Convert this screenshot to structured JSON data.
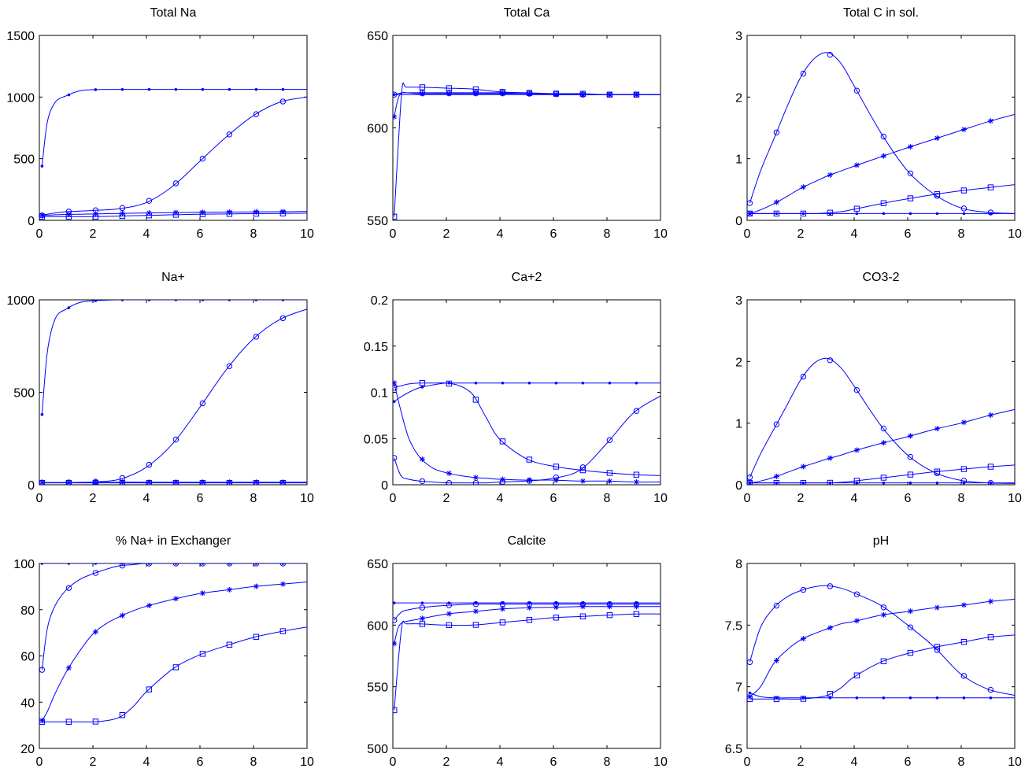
{
  "figure": {
    "marker_color": "#0000ff",
    "axes_color": "#000000"
  },
  "chart_data": [
    {
      "type": "line",
      "title": "Total Na",
      "xlabel": "",
      "ylabel": "",
      "xlim": [
        0,
        10
      ],
      "ylim": [
        0,
        1500
      ],
      "xticks": [
        0,
        2,
        4,
        6,
        8,
        10
      ],
      "yticks": [
        0,
        500,
        1000,
        1500
      ],
      "x": [
        0.1,
        0.3,
        0.6,
        1.0,
        1.5,
        2.0,
        3.0,
        4.0,
        5.0,
        6.0,
        7.0,
        8.0,
        9.0,
        10.0
      ],
      "series": [
        {
          "marker": "dot",
          "values": [
            440,
            800,
            960,
            1010,
            1050,
            1060,
            1062,
            1062,
            1062,
            1062,
            1062,
            1062,
            1062,
            1062
          ]
        },
        {
          "marker": "circle",
          "values": [
            40,
            50,
            60,
            70,
            75,
            80,
            95,
            145,
            280,
            480,
            680,
            850,
            960,
            1000
          ]
        },
        {
          "marker": "asterisk",
          "values": [
            40,
            42,
            45,
            48,
            50,
            52,
            56,
            60,
            63,
            65,
            67,
            69,
            70,
            72
          ]
        },
        {
          "marker": "square",
          "values": [
            30,
            30,
            30,
            30,
            30,
            30,
            35,
            40,
            45,
            50,
            52,
            54,
            56,
            58
          ]
        }
      ]
    },
    {
      "type": "line",
      "title": "Total Ca",
      "xlabel": "",
      "ylabel": "",
      "xlim": [
        0,
        10
      ],
      "ylim": [
        550,
        650
      ],
      "xticks": [
        0,
        2,
        4,
        6,
        8,
        10
      ],
      "yticks": [
        550,
        600,
        650
      ],
      "x": [
        0.05,
        0.2,
        0.35,
        0.5,
        1.0,
        2.0,
        3.0,
        4.0,
        5.0,
        6.0,
        7.0,
        8.0,
        9.0,
        10.0
      ],
      "series": [
        {
          "marker": "dot",
          "values": [
            618,
            618,
            618,
            618,
            618,
            618,
            618,
            618,
            618,
            618,
            618,
            618,
            618,
            618
          ]
        },
        {
          "marker": "circle",
          "values": [
            618,
            618.5,
            619,
            619,
            619,
            619,
            619,
            619,
            618.5,
            618.5,
            618,
            618,
            618,
            618
          ]
        },
        {
          "marker": "asterisk",
          "values": [
            606,
            616,
            619,
            619,
            618.5,
            618.5,
            618.5,
            618.5,
            618.5,
            618,
            618,
            618,
            618,
            618
          ]
        },
        {
          "marker": "square",
          "values": [
            552,
            590,
            622,
            622,
            622,
            621.5,
            621,
            619.5,
            619,
            618.5,
            618.5,
            618,
            618,
            618
          ]
        }
      ]
    },
    {
      "type": "line",
      "title": "Total C in sol.",
      "xlabel": "",
      "ylabel": "",
      "xlim": [
        0,
        10
      ],
      "ylim": [
        0,
        3
      ],
      "xticks": [
        0,
        2,
        4,
        6,
        8,
        10
      ],
      "yticks": [
        0,
        1,
        2,
        3
      ],
      "x": [
        0.1,
        0.5,
        1.0,
        1.5,
        2.0,
        2.5,
        3.0,
        3.5,
        4.0,
        5.0,
        6.0,
        7.0,
        8.0,
        9.0,
        10.0
      ],
      "series": [
        {
          "marker": "dot",
          "values": [
            0.11,
            0.11,
            0.11,
            0.11,
            0.11,
            0.11,
            0.11,
            0.11,
            0.11,
            0.11,
            0.11,
            0.11,
            0.11,
            0.11,
            0.11
          ]
        },
        {
          "marker": "circle",
          "values": [
            0.28,
            0.8,
            1.32,
            1.85,
            2.32,
            2.62,
            2.72,
            2.55,
            2.18,
            1.42,
            0.8,
            0.42,
            0.2,
            0.13,
            0.11
          ]
        },
        {
          "marker": "asterisk",
          "values": [
            0.11,
            0.17,
            0.27,
            0.39,
            0.52,
            0.62,
            0.72,
            0.8,
            0.88,
            1.03,
            1.18,
            1.32,
            1.46,
            1.6,
            1.72
          ]
        },
        {
          "marker": "square",
          "values": [
            0.11,
            0.11,
            0.11,
            0.11,
            0.11,
            0.11,
            0.12,
            0.14,
            0.18,
            0.27,
            0.35,
            0.42,
            0.48,
            0.53,
            0.58
          ]
        }
      ]
    },
    {
      "type": "line",
      "title": "Na+",
      "xlabel": "",
      "ylabel": "",
      "xlim": [
        0,
        10
      ],
      "ylim": [
        0,
        1000
      ],
      "xticks": [
        0,
        2,
        4,
        6,
        8,
        10
      ],
      "yticks": [
        0,
        500,
        1000
      ],
      "x": [
        0.1,
        0.3,
        0.6,
        1.0,
        1.5,
        2.0,
        3.0,
        4.0,
        5.0,
        6.0,
        7.0,
        8.0,
        9.0,
        10.0
      ],
      "series": [
        {
          "marker": "dot",
          "values": [
            380,
            720,
            900,
            950,
            985,
            995,
            1000,
            1000,
            1000,
            1000,
            1000,
            1000,
            1000,
            1000
          ]
        },
        {
          "marker": "circle",
          "values": [
            12,
            12,
            12,
            12,
            13,
            15,
            30,
            95,
            225,
            420,
            625,
            790,
            895,
            950
          ]
        },
        {
          "marker": "asterisk",
          "values": [
            12,
            12,
            12,
            12,
            12,
            12,
            14,
            14,
            14,
            14,
            14,
            14,
            14,
            14
          ]
        },
        {
          "marker": "square",
          "values": [
            10,
            10,
            10,
            10,
            10,
            10,
            10,
            10,
            10,
            10,
            10,
            10,
            10,
            10
          ]
        }
      ]
    },
    {
      "type": "line",
      "title": "Ca+2",
      "xlabel": "",
      "ylabel": "",
      "xlim": [
        0,
        10
      ],
      "ylim": [
        0,
        0.2
      ],
      "xticks": [
        0,
        2,
        4,
        6,
        8,
        10
      ],
      "yticks": [
        0,
        0.05,
        0.1,
        0.15,
        0.2
      ],
      "x": [
        0.05,
        0.3,
        0.6,
        1.0,
        1.5,
        2.0,
        2.5,
        3.0,
        3.5,
        4.0,
        5.0,
        6.0,
        7.0,
        8.0,
        9.0,
        10.0
      ],
      "series": [
        {
          "marker": "dot",
          "values": [
            0.09,
            0.095,
            0.1,
            0.105,
            0.108,
            0.11,
            0.11,
            0.11,
            0.11,
            0.11,
            0.11,
            0.11,
            0.11,
            0.11,
            0.11,
            0.11
          ]
        },
        {
          "marker": "circle",
          "values": [
            0.029,
            0.01,
            0.006,
            0.004,
            0.003,
            0.002,
            0.002,
            0.002,
            0.002,
            0.003,
            0.004,
            0.007,
            0.016,
            0.045,
            0.078,
            0.096
          ]
        },
        {
          "marker": "asterisk",
          "values": [
            0.11,
            0.08,
            0.05,
            0.03,
            0.018,
            0.013,
            0.01,
            0.008,
            0.007,
            0.006,
            0.005,
            0.005,
            0.004,
            0.004,
            0.003,
            0.003
          ]
        },
        {
          "marker": "square",
          "values": [
            0.105,
            0.107,
            0.109,
            0.11,
            0.11,
            0.11,
            0.107,
            0.097,
            0.072,
            0.049,
            0.028,
            0.02,
            0.016,
            0.013,
            0.011,
            0.01
          ]
        }
      ]
    },
    {
      "type": "line",
      "title": "CO3-2",
      "xlabel": "",
      "ylabel": "",
      "xlim": [
        0,
        10
      ],
      "ylim": [
        0,
        3
      ],
      "xticks": [
        0,
        2,
        4,
        6,
        8,
        10
      ],
      "yticks": [
        0,
        1,
        2,
        3
      ],
      "x": [
        0.1,
        0.5,
        1.0,
        1.5,
        2.0,
        2.5,
        3.0,
        3.5,
        4.0,
        5.0,
        6.0,
        7.0,
        8.0,
        9.0,
        10.0
      ],
      "series": [
        {
          "marker": "dot",
          "values": [
            0.03,
            0.03,
            0.03,
            0.03,
            0.03,
            0.03,
            0.03,
            0.03,
            0.03,
            0.03,
            0.03,
            0.03,
            0.03,
            0.03,
            0.03
          ]
        },
        {
          "marker": "circle",
          "values": [
            0.12,
            0.5,
            0.9,
            1.3,
            1.7,
            1.97,
            2.05,
            1.9,
            1.6,
            0.96,
            0.48,
            0.2,
            0.07,
            0.03,
            0.02
          ]
        },
        {
          "marker": "asterisk",
          "values": [
            0.03,
            0.06,
            0.12,
            0.2,
            0.28,
            0.35,
            0.42,
            0.48,
            0.55,
            0.67,
            0.78,
            0.9,
            1.0,
            1.12,
            1.22
          ]
        },
        {
          "marker": "square",
          "values": [
            0.03,
            0.03,
            0.03,
            0.03,
            0.03,
            0.03,
            0.03,
            0.04,
            0.06,
            0.11,
            0.16,
            0.21,
            0.25,
            0.29,
            0.32
          ]
        }
      ]
    },
    {
      "type": "line",
      "title": "% Na+ in Exchanger",
      "xlabel": "",
      "ylabel": "",
      "xlim": [
        0,
        10
      ],
      "ylim": [
        20,
        100
      ],
      "xticks": [
        0,
        2,
        4,
        6,
        8,
        10
      ],
      "yticks": [
        20,
        40,
        60,
        80,
        100
      ],
      "x": [
        0.1,
        0.3,
        0.6,
        1.0,
        1.5,
        2.0,
        2.5,
        3.0,
        3.5,
        4.0,
        5.0,
        6.0,
        7.0,
        8.0,
        9.0,
        10.0
      ],
      "series": [
        {
          "marker": "dot",
          "values": [
            100,
            100,
            100,
            100,
            100,
            100,
            100,
            100,
            100,
            100,
            100,
            100,
            100,
            100,
            100,
            100
          ]
        },
        {
          "marker": "circle",
          "values": [
            54,
            72,
            82,
            88.5,
            93,
            95.5,
            97.5,
            99,
            99.5,
            100,
            100,
            100,
            100,
            100,
            100,
            100
          ]
        },
        {
          "marker": "asterisk",
          "values": [
            32,
            36,
            44,
            53,
            62,
            69.5,
            74,
            77,
            79.5,
            81.5,
            84.5,
            87,
            88.5,
            90,
            91,
            92
          ]
        },
        {
          "marker": "square",
          "values": [
            31.5,
            31.5,
            31.5,
            31.5,
            31.5,
            31.5,
            32,
            33.5,
            38,
            44.5,
            54.5,
            60.5,
            64.5,
            68,
            70.5,
            72.5
          ]
        }
      ]
    },
    {
      "type": "line",
      "title": "Calcite",
      "xlabel": "",
      "ylabel": "",
      "xlim": [
        0,
        10
      ],
      "ylim": [
        500,
        650
      ],
      "xticks": [
        0,
        2,
        4,
        6,
        8,
        10
      ],
      "yticks": [
        500,
        550,
        600,
        650
      ],
      "x": [
        0.05,
        0.2,
        0.35,
        0.5,
        1.0,
        2.0,
        3.0,
        4.0,
        5.0,
        6.0,
        7.0,
        8.0,
        9.0,
        10.0
      ],
      "series": [
        {
          "marker": "dot",
          "values": [
            618,
            618,
            618,
            618,
            618,
            618,
            618,
            618,
            618,
            618,
            618,
            618,
            618,
            618
          ]
        },
        {
          "marker": "circle",
          "values": [
            604,
            608,
            611,
            612,
            614,
            616,
            617,
            617,
            617,
            617,
            617,
            617,
            617,
            617
          ]
        },
        {
          "marker": "asterisk",
          "values": [
            585,
            598,
            602,
            603,
            605,
            609,
            611,
            613,
            614,
            614.5,
            615,
            615,
            615,
            615
          ]
        },
        {
          "marker": "square",
          "values": [
            531,
            570,
            601,
            601,
            601,
            600,
            600,
            602,
            604,
            606,
            607,
            608,
            609,
            609
          ]
        }
      ]
    },
    {
      "type": "line",
      "title": "pH",
      "xlabel": "",
      "ylabel": "",
      "xlim": [
        0,
        10
      ],
      "ylim": [
        6.5,
        8
      ],
      "xticks": [
        0,
        2,
        4,
        6,
        8,
        10
      ],
      "yticks": [
        6.5,
        7,
        7.5,
        8
      ],
      "x": [
        0.1,
        0.5,
        1.0,
        1.5,
        2.0,
        2.5,
        3.0,
        3.5,
        4.0,
        5.0,
        6.0,
        7.0,
        8.0,
        9.0,
        10.0
      ],
      "series": [
        {
          "marker": "dot",
          "values": [
            6.95,
            6.92,
            6.91,
            6.91,
            6.91,
            6.91,
            6.91,
            6.91,
            6.91,
            6.91,
            6.91,
            6.91,
            6.91,
            6.91,
            6.91
          ]
        },
        {
          "marker": "circle",
          "values": [
            7.2,
            7.48,
            7.64,
            7.73,
            7.78,
            7.81,
            7.82,
            7.8,
            7.76,
            7.66,
            7.5,
            7.32,
            7.1,
            6.98,
            6.93
          ]
        },
        {
          "marker": "asterisk",
          "values": [
            6.92,
            7.0,
            7.19,
            7.3,
            7.38,
            7.43,
            7.47,
            7.51,
            7.53,
            7.58,
            7.61,
            7.64,
            7.66,
            7.69,
            7.71
          ]
        },
        {
          "marker": "square",
          "values": [
            6.9,
            6.9,
            6.9,
            6.9,
            6.9,
            6.91,
            6.93,
            6.99,
            7.08,
            7.2,
            7.27,
            7.32,
            7.36,
            7.4,
            7.42
          ]
        }
      ]
    }
  ]
}
